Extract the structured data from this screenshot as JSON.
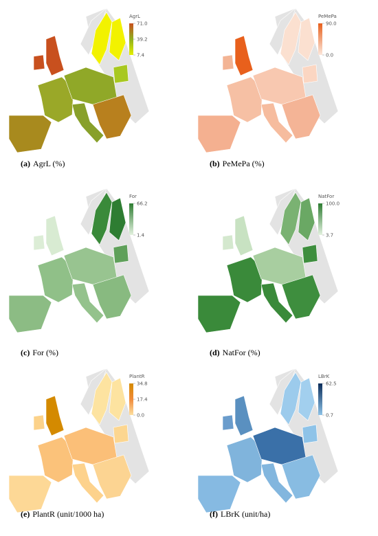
{
  "panels": [
    {
      "legend_title": "AgrL",
      "ticks": [
        {
          "value": 71.0,
          "label": "71.0"
        },
        {
          "value": 39.2,
          "label": "39.2"
        },
        {
          "value": 7.4,
          "label": "7.4"
        }
      ],
      "gradient": [
        "#e6f000",
        "#8fb020",
        "#c8501e"
      ],
      "label": "(a)",
      "caption": "AgrL (%)",
      "region_colors": [
        "#f2f200",
        "#f2f200",
        "#a8c820",
        "#c8501e",
        "#c8501e",
        "#9aa828",
        "#a88a1e",
        "#90a828",
        "#88a02a",
        "#b8801e"
      ]
    },
    {
      "legend_title": "PeMePa",
      "ticks": [
        {
          "value": 90.0,
          "label": "90.0"
        },
        {
          "value": 0.0,
          "label": "0.0"
        }
      ],
      "gradient": [
        "#fce8dc",
        "#e8601c"
      ],
      "label": "(b)",
      "caption": "PeMePa (%)",
      "region_colors": [
        "#fbe0d0",
        "#fbe0d0",
        "#fbd6c2",
        "#e8601c",
        "#f3b494",
        "#f6c0a4",
        "#f4b090",
        "#f8c8b0",
        "#f6bc9e",
        "#f4b496"
      ]
    },
    {
      "legend_title": "For",
      "ticks": [
        {
          "value": 66.2,
          "label": "66.2"
        },
        {
          "value": 1.4,
          "label": "1.4"
        }
      ],
      "gradient": [
        "#e4f2e0",
        "#2e7d32"
      ],
      "label": "(c)",
      "caption": "For (%)",
      "region_colors": [
        "#3a8a3a",
        "#2e7d32",
        "#5fa05a",
        "#d8ebd2",
        "#dcedd6",
        "#90c088",
        "#8cbc84",
        "#98c490",
        "#94c28c",
        "#88ba80"
      ]
    },
    {
      "legend_title": "NatFor",
      "ticks": [
        {
          "value": 100.0,
          "label": "100.0"
        },
        {
          "value": 3.7,
          "label": "3.7"
        }
      ],
      "gradient": [
        "#e4f2e0",
        "#2e7d32"
      ],
      "label": "(d)",
      "caption": "NatFor (%)",
      "region_colors": [
        "#7ab272",
        "#6aa864",
        "#3e8e3e",
        "#c8e2c2",
        "#d4e8ce",
        "#3a8a3a",
        "#3a8a3a",
        "#a8cea0",
        "#3a8a3a",
        "#3e8e3e"
      ]
    },
    {
      "legend_title": "PlantR",
      "ticks": [
        {
          "value": 34.8,
          "label": "34.8"
        },
        {
          "value": 17.4,
          "label": "17.4"
        },
        {
          "value": 0.0,
          "label": "0.0"
        }
      ],
      "gradient": [
        "#fde0a0",
        "#f08a3a",
        "#d48a00"
      ],
      "label": "(e)",
      "caption": "PlantR (unit/1000 ha)",
      "region_colors": [
        "#fde3a0",
        "#fde3a0",
        "#fcd690",
        "#d48a00",
        "#fcd28a",
        "#fbc27a",
        "#fdd896",
        "#fbbf78",
        "#fdd28c",
        "#fcd492"
      ]
    },
    {
      "legend_title": "LBrK",
      "ticks": [
        {
          "value": 62.5,
          "label": "62.5"
        },
        {
          "value": 0.7,
          "label": "0.7"
        }
      ],
      "gradient": [
        "#8ec3e8",
        "#0b2d5a"
      ],
      "label": "(f)",
      "caption": "LBrK (unit/ha)",
      "region_colors": [
        "#9ccbec",
        "#a2cfee",
        "#8ec3e8",
        "#5a90c0",
        "#6a9ccc",
        "#80b4dc",
        "#86bae2",
        "#3a70a8",
        "#82b6de",
        "#88bce2"
      ]
    }
  ]
}
